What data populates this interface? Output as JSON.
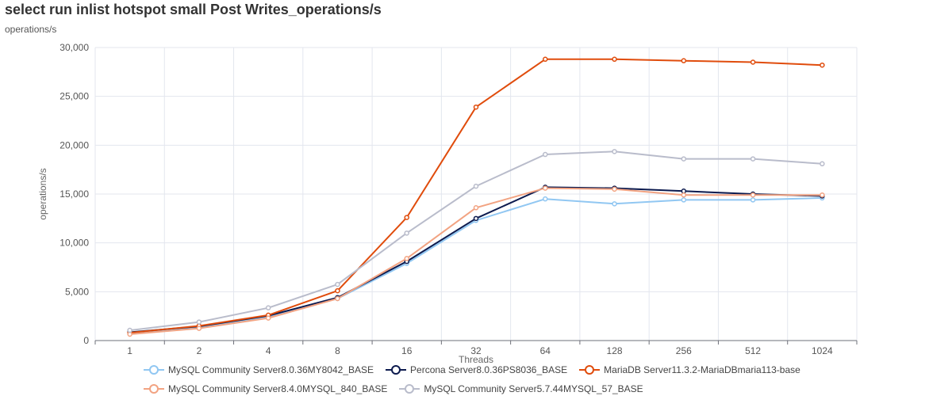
{
  "chart_data": {
    "type": "line",
    "title": "select run inlist hotspot small Post Writes_operations/s",
    "y_unit_label": "operations/s",
    "xlabel": "Threads",
    "ylabel": "operations/s",
    "ylim": [
      0,
      30000
    ],
    "y_ticks": [
      "0",
      "5,000",
      "10,000",
      "15,000",
      "20,000",
      "25,000",
      "30,000"
    ],
    "categories": [
      "1",
      "2",
      "4",
      "8",
      "16",
      "32",
      "64",
      "128",
      "256",
      "512",
      "1024"
    ],
    "grid": true,
    "legend_position": "bottom",
    "series": [
      {
        "name": "MySQL Community Server8.0.36MY8042_BASE",
        "color": "#91c7f2",
        "values": [
          750,
          1350,
          2450,
          4300,
          7900,
          12300,
          14500,
          14000,
          14400,
          14400,
          14600
        ]
      },
      {
        "name": "Percona Server8.0.36PS8036_BASE",
        "color": "#0c1a4e",
        "values": [
          850,
          1450,
          2550,
          4400,
          8100,
          12500,
          15700,
          15600,
          15300,
          15000,
          14800
        ]
      },
      {
        "name": "MariaDB Server11.3.2-MariaDBmaria113-base",
        "color": "#e04c0c",
        "values": [
          800,
          1500,
          2600,
          5100,
          12600,
          23900,
          28800,
          28800,
          28650,
          28500,
          28200
        ]
      },
      {
        "name": "MySQL Community Server8.4.0MYSQL_840_BASE",
        "color": "#f2a382",
        "values": [
          650,
          1250,
          2300,
          4300,
          8400,
          13600,
          15600,
          15500,
          14900,
          14900,
          14900
        ]
      },
      {
        "name": "MySQL Community Server5.7.44MYSQL_57_BASE",
        "color": "#b9bccb",
        "values": [
          1050,
          1900,
          3350,
          5750,
          11000,
          15800,
          19050,
          19350,
          18600,
          18600,
          18100
        ]
      }
    ]
  }
}
